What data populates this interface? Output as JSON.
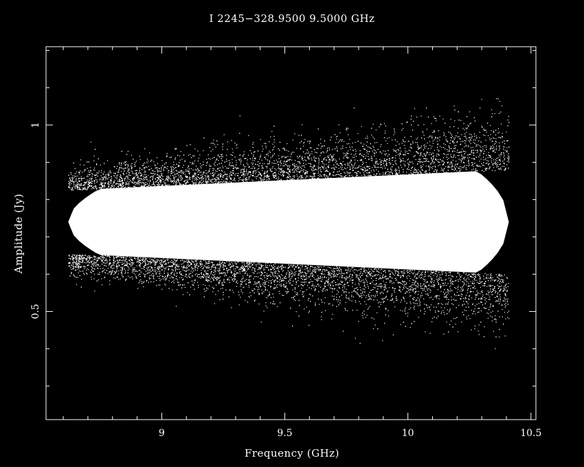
{
  "chart_data": {
    "type": "scatter",
    "title": "I 2245−328.9500  9.5000  GHz",
    "xlabel": "Frequency (GHz)",
    "ylabel": "Amplitude (Jy)",
    "xlim": [
      8.53,
      10.52
    ],
    "ylim": [
      0.21,
      1.21
    ],
    "xticks": [
      {
        "value": 9,
        "label": "9"
      },
      {
        "value": 9.5,
        "label": "9.5"
      },
      {
        "value": 10,
        "label": "10"
      },
      {
        "value": 10.5,
        "label": "10.5"
      }
    ],
    "yticks": [
      {
        "value": 0.5,
        "label": "0.5"
      },
      {
        "value": 1,
        "label": "1"
      }
    ],
    "x_minor_step": 0.1,
    "y_minor_step": 0.1,
    "grid": false,
    "background": "#000000",
    "foreground": "#ffffff",
    "series": [
      {
        "x_range": [
          8.62,
          10.41
        ],
        "center": 0.74,
        "core_halfwidth_start": 0.085,
        "core_halfwidth_end": 0.14,
        "spread_start": 0.05,
        "spread_end": 0.13,
        "points_shown": "dense cloud of visibility amplitudes",
        "color": "#ffffff"
      }
    ]
  },
  "icons": {
    "none": "no icons"
  }
}
